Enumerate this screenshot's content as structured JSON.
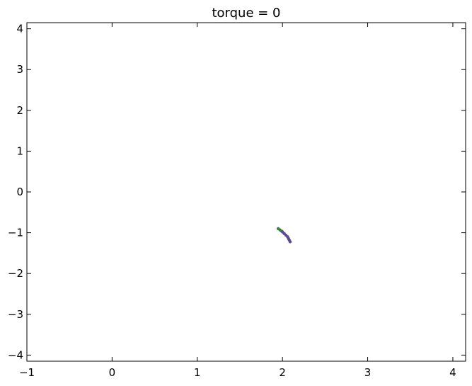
{
  "chart_data": {
    "type": "scatter",
    "title": "torque = 0",
    "xlabel": "",
    "ylabel": "",
    "xlim": [
      -1,
      4.15
    ],
    "ylim": [
      -4.15,
      4.15
    ],
    "xticks": [
      -1,
      0,
      1,
      2,
      3,
      4
    ],
    "yticks": [
      -4,
      -3,
      -2,
      -1,
      0,
      1,
      2,
      3,
      4
    ],
    "x_tick_labels": [
      "−1",
      "0",
      "1",
      "2",
      "3",
      "4"
    ],
    "y_tick_labels": [
      "−4",
      "−3",
      "−2",
      "−1",
      "0",
      "1",
      "2",
      "3",
      "4"
    ],
    "grid": false,
    "series": [
      {
        "color": "#3a7d44",
        "points": [
          [
            1.95,
            -0.9
          ],
          [
            1.97,
            -0.93
          ],
          [
            1.99,
            -0.96
          ]
        ]
      },
      {
        "color": "#5b4a8c",
        "points": [
          [
            2.0,
            -0.98
          ],
          [
            2.02,
            -1.02
          ],
          [
            2.04,
            -1.06
          ],
          [
            2.06,
            -1.1
          ],
          [
            2.07,
            -1.14
          ],
          [
            2.08,
            -1.18
          ],
          [
            2.09,
            -1.22
          ]
        ]
      }
    ]
  }
}
